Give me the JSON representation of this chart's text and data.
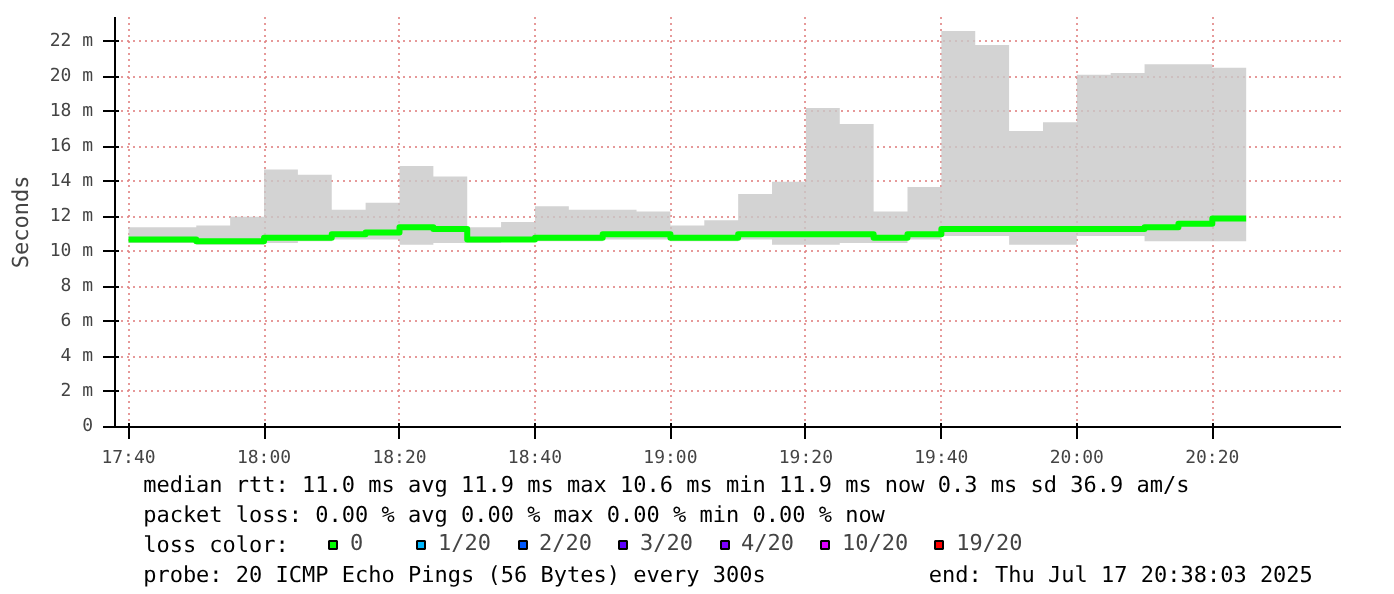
{
  "chart_data": {
    "type": "step",
    "ylabel": "Seconds",
    "x": [
      "2025-07-17T17:40",
      "2025-07-17T17:45",
      "2025-07-17T17:50",
      "2025-07-17T17:55",
      "2025-07-17T18:00",
      "2025-07-17T18:05",
      "2025-07-17T18:10",
      "2025-07-17T18:15",
      "2025-07-17T18:20",
      "2025-07-17T18:25",
      "2025-07-17T18:30",
      "2025-07-17T18:35",
      "2025-07-17T18:40",
      "2025-07-17T18:45",
      "2025-07-17T18:50",
      "2025-07-17T18:55",
      "2025-07-17T19:00",
      "2025-07-17T19:05",
      "2025-07-17T19:10",
      "2025-07-17T19:15",
      "2025-07-17T19:20",
      "2025-07-17T19:25",
      "2025-07-17T19:30",
      "2025-07-17T19:35",
      "2025-07-17T19:40",
      "2025-07-17T19:45",
      "2025-07-17T19:50",
      "2025-07-17T19:55",
      "2025-07-17T20:00",
      "2025-07-17T20:05",
      "2025-07-17T20:10",
      "2025-07-17T20:15",
      "2025-07-17T20:20",
      "2025-07-17T20:25"
    ],
    "series": [
      {
        "name": "0",
        "color": "#00ff00",
        "values": [
          10.7,
          10.7,
          10.7,
          10.6,
          10.6,
          10.8,
          10.8,
          11.0,
          11.1,
          11.4,
          11.3,
          10.7,
          10.7,
          10.8,
          10.8,
          11.0,
          11.0,
          10.8,
          10.8,
          11.0,
          11.0,
          11.0,
          11.0,
          10.8,
          11.0,
          11.3,
          11.3,
          11.3,
          11.3,
          11.3,
          11.3,
          11.4,
          11.6,
          11.9
        ],
        "lower": [
          10.4,
          10.5,
          10.5,
          10.4,
          10.4,
          10.5,
          10.6,
          10.7,
          10.7,
          10.4,
          10.5,
          10.5,
          10.6,
          10.6,
          10.6,
          10.7,
          10.7,
          10.6,
          10.6,
          10.7,
          10.4,
          10.4,
          10.5,
          10.5,
          10.7,
          10.9,
          10.9,
          10.4,
          10.4,
          10.9,
          10.9,
          10.6,
          10.6,
          10.6
        ],
        "upper": [
          11.9,
          11.4,
          11.4,
          11.5,
          12.0,
          14.7,
          14.4,
          12.4,
          12.8,
          14.9,
          14.3,
          11.4,
          11.7,
          12.6,
          12.4,
          12.4,
          12.3,
          11.5,
          11.8,
          13.3,
          14.0,
          18.2,
          17.3,
          12.3,
          13.7,
          22.6,
          21.8,
          16.9,
          17.4,
          20.1,
          20.2,
          20.7,
          20.7,
          20.5
        ]
      },
      {
        "name": "1/20",
        "color": "#00b8ff",
        "values": [
          null,
          null,
          null,
          null,
          null,
          null,
          null,
          null,
          null,
          null,
          null,
          null,
          null,
          null,
          null,
          null,
          null,
          null,
          null,
          null,
          null,
          null,
          null,
          null,
          null,
          null,
          null,
          null,
          null,
          null,
          null,
          null,
          null,
          null
        ]
      },
      {
        "name": "2/20",
        "color": "#0059ff",
        "values": [
          null,
          null,
          null,
          null,
          null,
          null,
          null,
          null,
          null,
          null,
          null,
          null,
          null,
          null,
          null,
          null,
          null,
          null,
          null,
          null,
          null,
          null,
          null,
          null,
          null,
          null,
          null,
          null,
          null,
          null,
          null,
          null,
          null,
          null
        ]
      },
      {
        "name": "3/20",
        "color": "#5e00ff",
        "values": [
          null,
          null,
          null,
          null,
          null,
          null,
          null,
          null,
          null,
          null,
          null,
          null,
          null,
          null,
          null,
          null,
          null,
          null,
          null,
          null,
          null,
          null,
          null,
          null,
          null,
          null,
          null,
          null,
          null,
          null,
          null,
          null,
          null,
          null
        ]
      },
      {
        "name": "4/20",
        "color": "#7e00ff",
        "values": [
          null,
          null,
          null,
          null,
          null,
          null,
          null,
          null,
          null,
          null,
          null,
          null,
          null,
          null,
          null,
          null,
          null,
          null,
          null,
          null,
          null,
          null,
          null,
          null,
          null,
          null,
          null,
          null,
          null,
          null,
          null,
          null,
          null,
          null
        ]
      },
      {
        "name": "10/20",
        "color": "#dd00ff",
        "values": [
          null,
          null,
          null,
          null,
          null,
          null,
          null,
          null,
          null,
          null,
          null,
          null,
          null,
          null,
          null,
          null,
          null,
          null,
          null,
          null,
          null,
          null,
          null,
          null,
          null,
          null,
          null,
          null,
          null,
          null,
          null,
          null,
          null,
          null
        ]
      },
      {
        "name": "19/20",
        "color": "#ff0000",
        "values": [
          null,
          null,
          null,
          null,
          null,
          null,
          null,
          null,
          null,
          null,
          null,
          null,
          null,
          null,
          null,
          null,
          null,
          null,
          null,
          null,
          null,
          null,
          null,
          null,
          null,
          null,
          null,
          null,
          null,
          null,
          null,
          null,
          null,
          null
        ]
      }
    ],
    "legend": "bottom",
    "legend_title": "loss color:",
    "xlim": [
      "2025-07-17T17:38",
      "2025-07-17T20:39"
    ],
    "xticks": [
      {
        "value": "2025-07-17T17:40",
        "label": "17:40"
      },
      {
        "value": "2025-07-17T18:00",
        "label": "18:00"
      },
      {
        "value": "2025-07-17T18:20",
        "label": "18:20"
      },
      {
        "value": "2025-07-17T18:40",
        "label": "18:40"
      },
      {
        "value": "2025-07-17T19:00",
        "label": "19:00"
      },
      {
        "value": "2025-07-17T19:20",
        "label": "19:20"
      },
      {
        "value": "2025-07-17T19:40",
        "label": "19:40"
      },
      {
        "value": "2025-07-17T20:00",
        "label": "20:00"
      },
      {
        "value": "2025-07-17T20:20",
        "label": "20:20"
      }
    ],
    "ylim": [
      0,
      23.4
    ],
    "yticks": [
      0,
      {
        "value": 2,
        "label": "2 m"
      },
      {
        "value": 4,
        "label": "4 m"
      },
      {
        "value": 6,
        "label": "6 m"
      },
      {
        "value": 8,
        "label": "8 m"
      },
      {
        "value": 10,
        "label": "10 m"
      },
      {
        "value": 12,
        "label": "12 m"
      },
      {
        "value": 14,
        "label": "14 m"
      },
      {
        "value": 16,
        "label": "16 m"
      },
      {
        "value": 18,
        "label": "18 m"
      },
      {
        "value": 20,
        "label": "20 m"
      },
      {
        "value": 22,
        "label": "22 m"
      }
    ],
    "grid": true,
    "marker": "none",
    "line_style": "solid",
    "annotations": [
      "median rtt:  11.0 ms avg  11.9 ms max  10.6 ms min  11.9 ms now  0.3 ms sd  36.9   am/s",
      "packet loss: 0.00 % avg  0.00 % max  0.00 % min  0.00 % now",
      "probe:       20 ICMP Echo Pings (56 Bytes) every 300s",
      "end: Thu Jul 17 20:38:03 2025"
    ]
  }
}
